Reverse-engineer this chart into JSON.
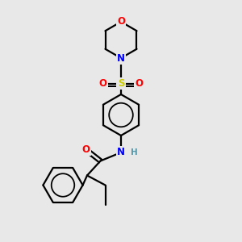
{
  "background_color": "#e8e8e8",
  "bond_color": "#000000",
  "atom_colors": {
    "O": "#ff0000",
    "N": "#0000ff",
    "S": "#cccc00",
    "H": "#5599aa",
    "C": "#000000"
  },
  "figsize": [
    3.0,
    3.0
  ],
  "dpi": 100,
  "lw": 1.6
}
